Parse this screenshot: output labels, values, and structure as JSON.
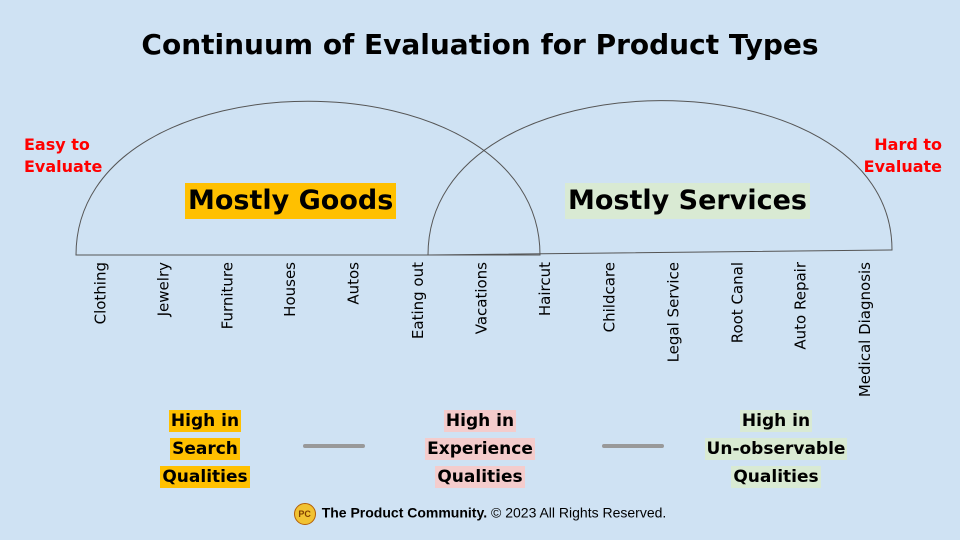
{
  "title": "Continuum of Evaluation for Product Types",
  "left_label": [
    "Easy to",
    "Evaluate"
  ],
  "right_label": [
    "Hard to",
    "Evaluate"
  ],
  "groups": {
    "goods": "Mostly Goods",
    "services": "Mostly Services"
  },
  "categories": [
    "Clothing",
    "Jewelry",
    "Furniture",
    "Houses",
    "Autos",
    "Eating out",
    "Vacations",
    "Haircut",
    "Childcare",
    "Legal Service",
    "Root Canal",
    "Auto Repair",
    "Medical Diagnosis"
  ],
  "qualities": {
    "search": [
      "High in",
      "Search",
      "Qualities"
    ],
    "experience": [
      "High in",
      "Experience",
      "Qualities"
    ],
    "unobservable": [
      "High in",
      "Un-observable",
      "Qualities"
    ]
  },
  "colors": {
    "background": "#cfe2f3",
    "goods_highlight": "#ffc000",
    "services_highlight": "#d9ead3",
    "experience_highlight": "#f4cccc",
    "edge_labels": "#ff0000"
  },
  "logo_text": "PC",
  "footer": {
    "brand": "The Product Community.",
    "rights": "© 2023 All Rights Reserved."
  }
}
